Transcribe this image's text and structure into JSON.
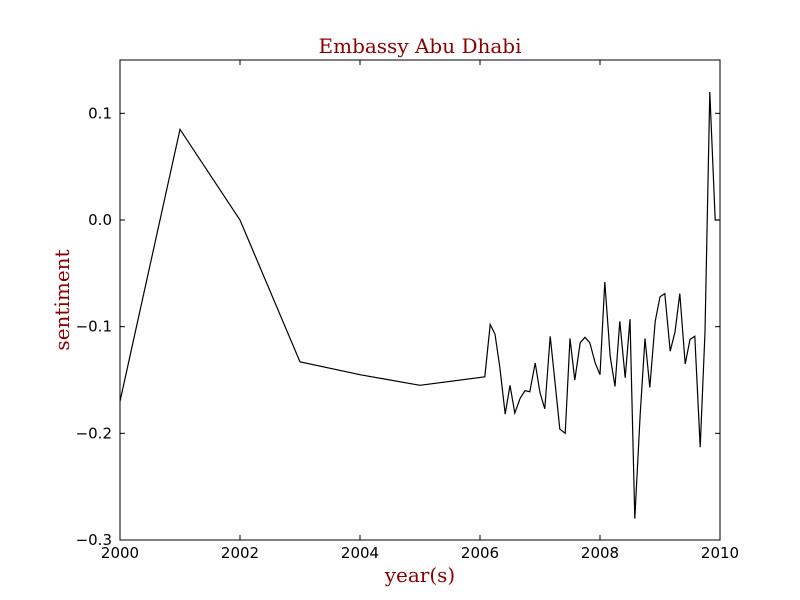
{
  "chart_data": {
    "type": "line",
    "title": "Embassy Abu Dhabi",
    "xlabel": "year(s)",
    "ylabel": "sentiment",
    "xlim": [
      2000,
      2010
    ],
    "ylim": [
      -0.3,
      0.15
    ],
    "xticks": [
      2000,
      2002,
      2004,
      2006,
      2008,
      2010
    ],
    "xtick_labels": [
      "2000",
      "2002",
      "2004",
      "2006",
      "2008",
      "2010"
    ],
    "yticks": [
      -0.3,
      -0.2,
      -0.1,
      0.0,
      0.1
    ],
    "ytick_labels": [
      "−0.3",
      "−0.2",
      "−0.1",
      "0.0",
      "0.1"
    ],
    "grid": false,
    "colors": {
      "line": "#000000",
      "title": "#8b0000"
    },
    "series": [
      {
        "x": [
          2000.0,
          2001.0,
          2002.0,
          2003.0,
          2004.0,
          2005.0,
          2006.08,
          2006.17,
          2006.25,
          2006.33,
          2006.42,
          2006.5,
          2006.58,
          2006.67,
          2006.75,
          2006.83,
          2006.92,
          2007.0,
          2007.08,
          2007.17,
          2007.25,
          2007.33,
          2007.42,
          2007.5,
          2007.58,
          2007.67,
          2007.75,
          2007.83,
          2007.92,
          2008.0,
          2008.08,
          2008.17,
          2008.25,
          2008.33,
          2008.42,
          2008.5,
          2008.58,
          2008.67,
          2008.75,
          2008.83,
          2008.92,
          2009.0,
          2009.08,
          2009.17,
          2009.25,
          2009.33,
          2009.42,
          2009.5,
          2009.58,
          2009.67,
          2009.75,
          2009.83,
          2009.92,
          2010.0
        ],
        "y": [
          -0.17,
          0.085,
          0.0,
          -0.133,
          -0.145,
          -0.155,
          -0.147,
          -0.098,
          -0.107,
          -0.138,
          -0.182,
          -0.155,
          -0.181,
          -0.167,
          -0.16,
          -0.161,
          -0.134,
          -0.162,
          -0.177,
          -0.109,
          -0.152,
          -0.196,
          -0.2,
          -0.111,
          -0.15,
          -0.115,
          -0.11,
          -0.115,
          -0.134,
          -0.145,
          -0.058,
          -0.128,
          -0.156,
          -0.095,
          -0.148,
          -0.093,
          -0.28,
          -0.182,
          -0.111,
          -0.157,
          -0.095,
          -0.072,
          -0.069,
          -0.123,
          -0.105,
          -0.069,
          -0.135,
          -0.112,
          -0.109,
          -0.213,
          -0.105,
          0.12,
          0.0,
          0.0
        ]
      }
    ]
  }
}
